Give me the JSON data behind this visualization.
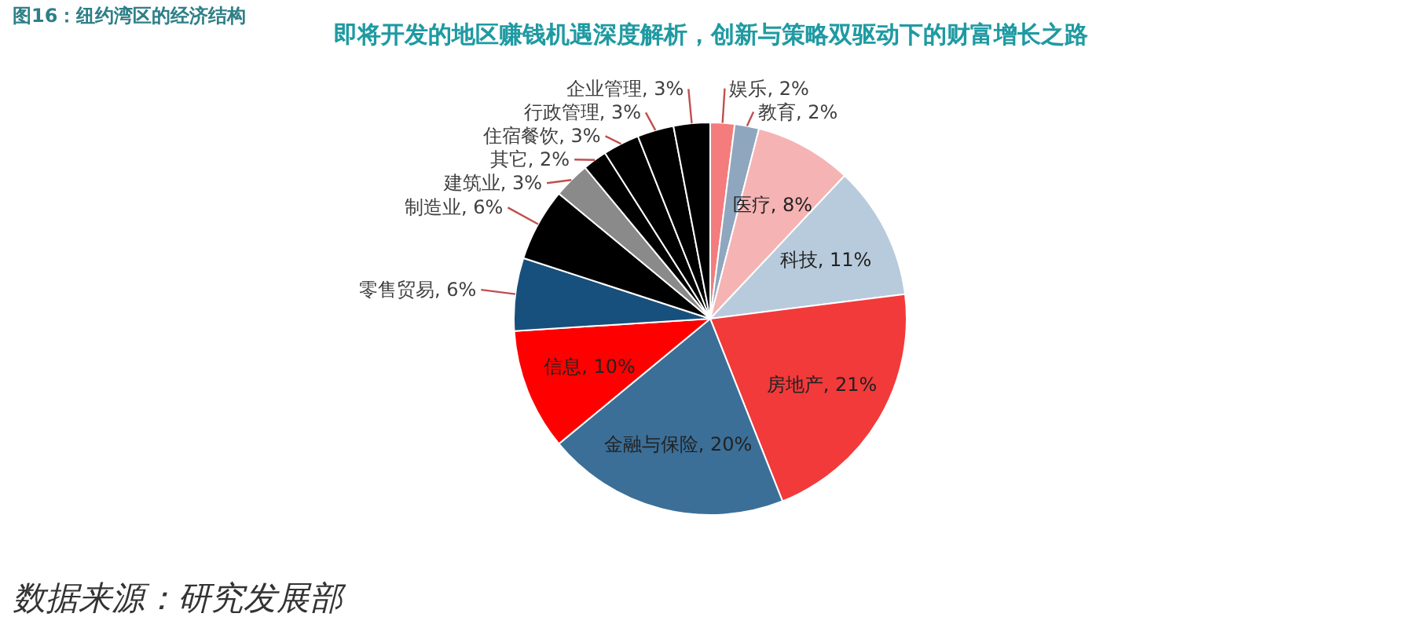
{
  "chart_data": {
    "type": "pie",
    "title": "即将开发的地区赚钱机遇深度解析，创新与策略双驱动下的财富增长之路",
    "subtitle": "图16：纽约湾区的经济结构",
    "categories": [
      "娱乐",
      "教育",
      "医疗",
      "科技",
      "房地产",
      "金融与保险",
      "信息",
      "零售贸易",
      "制造业",
      "建筑业",
      "其它",
      "住宿餐饮",
      "行政管理",
      "企业管理"
    ],
    "values": [
      2,
      2,
      8,
      11,
      21,
      20,
      10,
      6,
      6,
      3,
      2,
      3,
      3,
      3
    ],
    "colors": [
      "#f47c7c",
      "#8fa6bf",
      "#f6b3b3",
      "#b8cbdc",
      "#f23a3a",
      "#3b6f98",
      "#ff0000",
      "#17507d",
      "#000000",
      "#8a8a8a",
      "#000000",
      "#000000",
      "#000000",
      "#000000"
    ],
    "value_labels": [
      "2%",
      "2%",
      "8%",
      "11%",
      "21%",
      "20%",
      "10%",
      "6%",
      "6%",
      "3%",
      "2%",
      "3%",
      "3%",
      "3%"
    ],
    "annotations": [
      "数据来源：研究发展部"
    ]
  }
}
